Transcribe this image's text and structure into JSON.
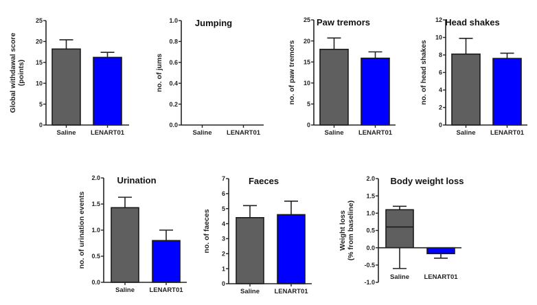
{
  "chart_data": [
    {
      "type": "bar",
      "title": "",
      "xlabel": "",
      "ylabel": [
        "Global withdawal score",
        "(points)"
      ],
      "categories": [
        "Saline",
        "LENART01"
      ],
      "values": [
        18.2,
        16.2
      ],
      "error_upper": [
        20.4,
        17.4
      ],
      "ylim": [
        0,
        25
      ],
      "yticks": [
        0,
        5,
        10,
        15,
        20,
        25
      ],
      "ytick_labels": [
        "0",
        "5",
        "10",
        "15",
        "20",
        "25"
      ],
      "colors": [
        "#5f5f5f",
        "#0000ff"
      ]
    },
    {
      "type": "bar",
      "title": "Jumping",
      "xlabel": "",
      "ylabel": [
        "no. of jums"
      ],
      "categories": [
        "Saline",
        "LENART01"
      ],
      "values": [
        0,
        0
      ],
      "error_upper": [
        0,
        0
      ],
      "ylim": [
        0,
        1.0
      ],
      "yticks": [
        0,
        0.2,
        0.4,
        0.6,
        0.8,
        1.0
      ],
      "ytick_labels": [
        "0.0",
        "0.2",
        "0.4",
        "0.6",
        "0.8",
        "1.0"
      ],
      "colors": [
        "#5f5f5f",
        "#0000ff"
      ]
    },
    {
      "type": "bar",
      "title": "Paw tremors",
      "xlabel": "",
      "ylabel": [
        "no. of paw tremors"
      ],
      "categories": [
        "Saline",
        "LENART01"
      ],
      "values": [
        18.0,
        15.9
      ],
      "error_upper": [
        20.7,
        17.4
      ],
      "ylim": [
        0,
        25
      ],
      "yticks": [
        0,
        5,
        10,
        15,
        20,
        25
      ],
      "ytick_labels": [
        "0",
        "5",
        "10",
        "15",
        "20",
        "25"
      ],
      "colors": [
        "#5f5f5f",
        "#0000ff"
      ]
    },
    {
      "type": "bar",
      "title": "Head shakes",
      "xlabel": "",
      "ylabel": [
        "no. of head shakes"
      ],
      "categories": [
        "Saline",
        "LENART01"
      ],
      "values": [
        8.1,
        7.6
      ],
      "error_upper": [
        9.9,
        8.2
      ],
      "ylim": [
        0,
        12
      ],
      "yticks": [
        0,
        2,
        4,
        6,
        8,
        10,
        12
      ],
      "ytick_labels": [
        "0",
        "2",
        "4",
        "6",
        "8",
        "10",
        "12"
      ],
      "colors": [
        "#5f5f5f",
        "#0000ff"
      ]
    },
    {
      "type": "bar",
      "title": "Urination",
      "xlabel": "",
      "ylabel": [
        "no. of urination events"
      ],
      "categories": [
        "Saline",
        "LENART01"
      ],
      "values": [
        1.43,
        0.8
      ],
      "error_upper": [
        1.63,
        1.0
      ],
      "ylim": [
        0,
        2.0
      ],
      "yticks": [
        0,
        0.5,
        1.0,
        1.5,
        2.0
      ],
      "ytick_labels": [
        "0.0",
        "0.5",
        "1.0",
        "1.5",
        "2.0"
      ],
      "colors": [
        "#5f5f5f",
        "#0000ff"
      ]
    },
    {
      "type": "bar",
      "title": "Faeces",
      "xlabel": "",
      "ylabel": [
        "no. of faeces"
      ],
      "categories": [
        "Saline",
        "LENART01"
      ],
      "values": [
        4.4,
        4.6
      ],
      "error_upper": [
        5.2,
        5.5
      ],
      "ylim": [
        0,
        7
      ],
      "yticks": [
        0,
        1,
        2,
        3,
        4,
        5,
        6,
        7
      ],
      "ytick_labels": [
        "0",
        "1",
        "2",
        "3",
        "4",
        "5",
        "6",
        "7"
      ],
      "colors": [
        "#5f5f5f",
        "#0000ff"
      ]
    },
    {
      "type": "bar",
      "title": "Body weight loss",
      "xlabel": "",
      "ylabel": [
        "Weight loss",
        "(% from baseline)"
      ],
      "categories": [
        "Saline",
        "LENART01"
      ],
      "values": [
        1.1,
        -0.17
      ],
      "inner_line": [
        0.6,
        null
      ],
      "error_upper": [
        1.2,
        null
      ],
      "error_lower": [
        -0.6,
        -0.3
      ],
      "ylim": [
        -1.0,
        2.0
      ],
      "yticks": [
        -1.0,
        -0.5,
        0,
        0.5,
        1.0,
        1.5,
        2.0
      ],
      "ytick_labels": [
        "-1.0",
        "-0.5",
        "0.0",
        "0.5",
        "1.0",
        "1.5",
        "2.0"
      ],
      "colors": [
        "#5f5f5f",
        "#0000ff"
      ]
    }
  ]
}
